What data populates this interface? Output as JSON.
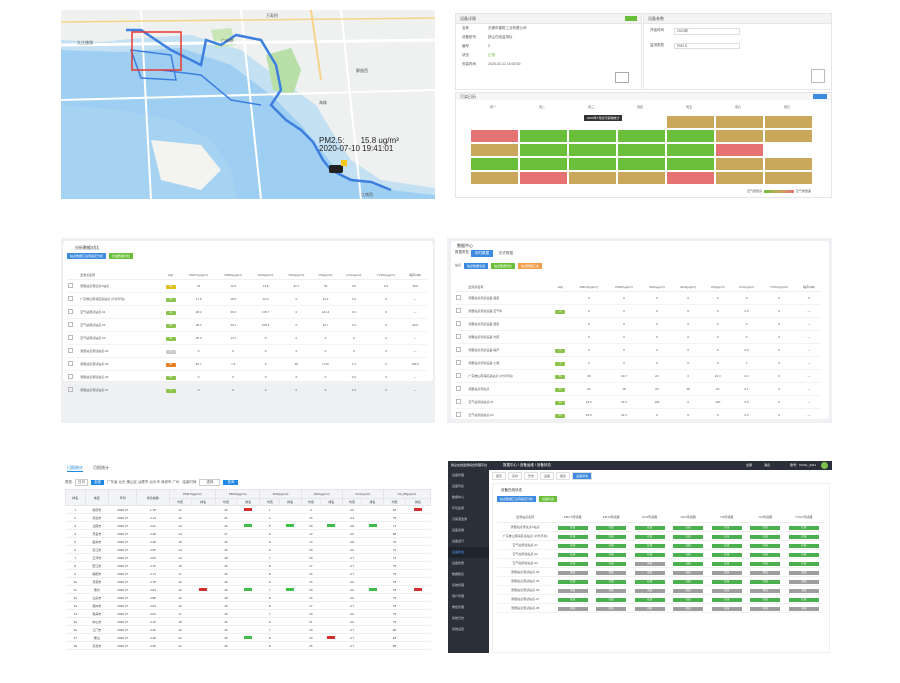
{
  "map": {
    "labels": [
      "万寿桥",
      "九江旅游",
      "广州港",
      "荔湾",
      "解放西",
      "海珠",
      "江南西",
      "中大",
      "南洲",
      "燕岗"
    ],
    "pm25_label": "PM2.5:",
    "pm25_value": "15.8 ug/m³",
    "timestamp": "2020-07-10 19:41:01"
  },
  "panel2": {
    "left_title": "设备详情",
    "right_title": "设备参数",
    "green_btn": "",
    "rows": [
      {
        "k": "名称",
        "v": "无锡市建筑工业有限公司"
      },
      {
        "k": "设备型号",
        "v": "扬尘在线监测仪"
      },
      {
        "k": "编号",
        "v": "3"
      },
      {
        "k": "状态",
        "v": "正常"
      },
      {
        "k": "安装时间",
        "v": "2020-02-21 16:02:00"
      }
    ],
    "params": [
      {
        "k": "开始时间",
        "v": "2020年"
      },
      {
        "k": "监测类型",
        "v": "PM2.5"
      }
    ],
    "heat_title": "污染日历",
    "heat_btn": "",
    "days": [
      "周一",
      "周二",
      "周三",
      "周四",
      "周五",
      "周六",
      "周日"
    ],
    "tooltip": "2020年7月的污染物统计",
    "legend_low": "优",
    "legend_high": "重度",
    "legend_low_label": "空气质量良",
    "legend_high_label": "空气质量差"
  },
  "table3": {
    "title": "分析数据对比",
    "buttons": [
      "站点数据汇总到指定分析",
      "扫描数据对比"
    ],
    "headers": [
      "",
      "监测点名称",
      "AQI",
      "PM2.5(μg/m³)",
      "PM10(μg/m³)",
      "SO2(μg/m³)",
      "NO2(μg/m³)",
      "O3(μg/m³)",
      "CO(mg/m³)",
      "TVOC(μg/m³)",
      "噪声(dB)"
    ],
    "rows": [
      {
        "name": "测量站点测试点A站点",
        "aqi": "45",
        "color": "#e0c020",
        "vals": [
          "32",
          "12.5",
          "14.8",
          "32.7",
          "78",
          "0.5",
          "0.3",
          "78.8"
        ]
      },
      {
        "name": "广东佛山南海区某站点 (户外环境)",
        "aqi": "51",
        "color": "#8bc34a",
        "vals": [
          "17.5",
          "18.5",
          "12.0",
          "0",
          "24.2",
          "0.2",
          "0",
          "—"
        ]
      },
      {
        "name": "空气站测试站点-01",
        "aqi": "42",
        "color": "#8bc34a",
        "vals": [
          "28.4",
          "30.4",
          "115.7",
          "0",
          "124.4",
          "0.3",
          "0",
          "—"
        ]
      },
      {
        "name": "空气站测试站点-02",
        "aqi": "58",
        "color": "#8bc34a",
        "vals": [
          "38.4",
          "20.1",
          "108.3",
          "0",
          "33.7",
          "0.3",
          "0",
          "52.0"
        ]
      },
      {
        "name": "空气站测试站点-03",
        "aqi": "40",
        "color": "#8bc34a",
        "vals": [
          "25.3",
          "14.7",
          "0",
          "0",
          "0",
          "0",
          "0",
          "—"
        ]
      },
      {
        "name": "测量站点测试站点-04",
        "aqi": "0",
        "color": "#cccccc",
        "vals": [
          "0",
          "0",
          "0",
          "0",
          "0",
          "0",
          "0",
          "—"
        ]
      },
      {
        "name": "测量站点测试站点-05",
        "aqi": "95",
        "color": "#e67e22",
        "vals": [
          "81.7",
          "7.9",
          "0",
          "60",
          "1712",
          "0.1",
          "0",
          "196.0"
        ]
      },
      {
        "name": "测量站点测试站点-06",
        "aqi": "50",
        "color": "#8bc34a",
        "vals": [
          "0",
          "0",
          "0",
          "0",
          "0",
          "0.2",
          "0",
          "—"
        ]
      },
      {
        "name": "测量站点测试站点-07",
        "aqi": "0",
        "color": "#8bc34a",
        "vals": [
          "0",
          "0",
          "0",
          "0",
          "0",
          "0.3",
          "0",
          "—"
        ]
      }
    ]
  },
  "table4": {
    "title": "数据中心",
    "tabs": [
      "数据类型",
      "实时数据",
      "历史数据"
    ],
    "filters": [
      "站点",
      "站点数据全选",
      "站点数据对比",
      "站点数据汇总"
    ],
    "headers": [
      "",
      "监测点名称",
      "AQI",
      "PM2.5(μg/m³)",
      "PM10(μg/m³)",
      "SO2(μg/m³)",
      "NO2(μg/m³)",
      "O3(μg/m³)",
      "CO(mg/m³)",
      "TVOC(μg/m³)",
      "噪声(dB)"
    ],
    "rows": [
      {
        "name": "测量站点测试设备-温度",
        "aqi": "",
        "color": "",
        "vals": [
          "0",
          "0",
          "0",
          "0",
          "0",
          "0",
          "0",
          "0"
        ]
      },
      {
        "name": "测量站点测试设备-空气中",
        "aqi": "0",
        "color": "#8bc34a",
        "vals": [
          "0",
          "0",
          "0",
          "0",
          "0",
          "0.5",
          "0",
          "—"
        ]
      },
      {
        "name": "测量站点测试设备-湿度",
        "aqi": "",
        "color": "",
        "vals": [
          "0",
          "0",
          "0",
          "0",
          "0",
          "0",
          "0",
          "—"
        ]
      },
      {
        "name": "测量站点测试设备-光照",
        "aqi": "",
        "color": "",
        "vals": [
          "0",
          "0",
          "0",
          "0",
          "0",
          "0",
          "0",
          "—"
        ]
      },
      {
        "name": "测量站点测试设备-噪声",
        "aqi": "0",
        "color": "#8bc34a",
        "vals": [
          "0",
          "0",
          "0",
          "0",
          "0",
          "0.3",
          "0",
          "—"
        ]
      },
      {
        "name": "测量站点测试设备-土壤",
        "aqi": "0",
        "color": "#8bc34a",
        "vals": [
          "0",
          "0",
          "0",
          "0",
          "0",
          "1",
          "0",
          "—"
        ]
      },
      {
        "name": "广东佛山南海区某站点 (户外环境)",
        "aqi": "51",
        "color": "#8bc34a",
        "vals": [
          "18",
          "30.7",
          "23",
          "0",
          "22.3",
          "0.2",
          "0",
          "—"
        ]
      },
      {
        "name": "测量站点测试点",
        "aqi": "41",
        "color": "#8bc34a",
        "vals": [
          "22",
          "18",
          "25",
          "48",
          "61",
          "0.1",
          "0",
          "—"
        ]
      },
      {
        "name": "空气站测试站点-01",
        "aqi": "42",
        "color": "#8bc34a",
        "vals": [
          "23.5",
          "24.3",
          "102",
          "0",
          "120",
          "0.3",
          "0",
          "—"
        ]
      },
      {
        "name": "空气站测试站点-02",
        "aqi": "43",
        "color": "#8bc34a",
        "vals": [
          "22.5",
          "24.1",
          "0",
          "0",
          "0",
          "0.2",
          "0",
          "—"
        ]
      },
      {
        "name": "空气站测试站点-03",
        "aqi": "55",
        "color": "#e0c020",
        "vals": [
          "37.3",
          "38.7",
          "176.6",
          "0",
          "36.3",
          "0.3",
          "0",
          "40.0"
        ]
      }
    ]
  },
  "table5": {
    "tabs": [
      "日报统计",
      "月报统计"
    ],
    "filter_labels": [
      "类型",
      "日月",
      "全部",
      "广东省 汕头 佛山区 汕尾市 汕头市 深圳市 广州",
      "结束时间",
      "选择",
      "查询"
    ],
    "header_groups": [
      "PM2.5(μg/m³)",
      "PM10(μg/m³)",
      "SO2(μg/m³)",
      "NO2(μg/m³)",
      "CO(mg/m³)",
      "O3_8h(μg/m³)"
    ],
    "headers": [
      "排名",
      "地区",
      "年份",
      "综合指数"
    ],
    "sub_headers": [
      "均值",
      "排名"
    ],
    "rows": [
      {
        "rank": "1",
        "area": "肇庆市",
        "year": "2020.07",
        "idx": "1.78",
        "v": [
          "12",
          "",
          "22",
          "",
          "1",
          "",
          "9",
          "",
          "0.5",
          "",
          "56",
          ""
        ],
        "hl": [
          0,
          2,
          0,
          0,
          0,
          2
        ]
      },
      {
        "rank": "2",
        "area": "清远市",
        "year": "2020.07",
        "idx": "2.14",
        "v": [
          "16",
          "",
          "21",
          "",
          "4",
          "",
          "15",
          "",
          "0.4",
          "",
          "75",
          ""
        ],
        "hl": [
          0,
          0,
          0,
          0,
          0,
          0
        ]
      },
      {
        "rank": "3",
        "area": "汕尾市",
        "year": "2020.07",
        "idx": "2.21",
        "v": [
          "13",
          "",
          "22",
          "",
          "5",
          "",
          "18",
          "",
          "0.8",
          "",
          "71",
          ""
        ],
        "hl": [
          0,
          1,
          1,
          1,
          1,
          0
        ]
      },
      {
        "rank": "4",
        "area": "茂名市",
        "year": "2020.07",
        "idx": "2.48",
        "v": [
          "14",
          "",
          "27",
          "",
          "6",
          "",
          "12",
          "",
          "0.5",
          "",
          "68",
          ""
        ],
        "hl": [
          0,
          0,
          0,
          0,
          0,
          0
        ]
      },
      {
        "rank": "5",
        "area": "韶关市",
        "year": "2020.07",
        "idx": "2.48",
        "v": [
          "15",
          "",
          "25",
          "",
          "9",
          "",
          "14",
          "",
          "0.8",
          "",
          "70",
          ""
        ],
        "hl": [
          0,
          0,
          0,
          0,
          0,
          0
        ]
      },
      {
        "rank": "6",
        "area": "湛江市",
        "year": "2020.07",
        "idx": "2.55",
        "v": [
          "14",
          "",
          "26",
          "",
          "6",
          "",
          "18",
          "",
          "0.6",
          "",
          "72",
          ""
        ],
        "hl": [
          0,
          0,
          0,
          0,
          0,
          0
        ]
      },
      {
        "rank": "7",
        "area": "云浮市",
        "year": "2020.07",
        "idx": "2.63",
        "v": [
          "13",
          "",
          "28",
          "",
          "7",
          "",
          "18",
          "",
          "0.7",
          "",
          "74",
          ""
        ],
        "hl": [
          0,
          0,
          0,
          0,
          0,
          0
        ]
      },
      {
        "rank": "8",
        "area": "阳江市",
        "year": "2020.07",
        "idx": "2.70",
        "v": [
          "15",
          "",
          "25",
          "",
          "8",
          "",
          "17",
          "",
          "0.7",
          "",
          "75",
          ""
        ],
        "hl": [
          0,
          0,
          0,
          0,
          0,
          0
        ]
      },
      {
        "rank": "9",
        "area": "揭阳市",
        "year": "2020.07",
        "idx": "2.74",
        "v": [
          "17",
          "",
          "26",
          "",
          "8",
          "",
          "16",
          "",
          "0.7",
          "",
          "76",
          ""
        ],
        "hl": [
          0,
          0,
          0,
          0,
          0,
          0
        ]
      },
      {
        "rank": "10",
        "area": "河源市",
        "year": "2020.07",
        "idx": "2.78",
        "v": [
          "16",
          "",
          "29",
          "",
          "6",
          "",
          "15",
          "",
          "0.6",
          "",
          "78",
          ""
        ],
        "hl": [
          0,
          0,
          0,
          0,
          0,
          0
        ]
      },
      {
        "rank": "11",
        "area": "惠州",
        "year": "2020.07",
        "idx": "2.84",
        "v": [
          "16",
          "",
          "29",
          "",
          "7",
          "",
          "18",
          "",
          "0.6",
          "",
          "78",
          ""
        ],
        "hl": [
          2,
          1,
          1,
          0,
          1,
          2
        ]
      },
      {
        "rank": "12",
        "area": "汕头市",
        "year": "2020.07",
        "idx": "2.88",
        "v": [
          "16",
          "",
          "28",
          "",
          "8",
          "",
          "16",
          "",
          "0.6",
          "",
          "79",
          ""
        ],
        "hl": [
          0,
          0,
          0,
          0,
          0,
          0
        ]
      },
      {
        "rank": "13",
        "area": "潮州市",
        "year": "2020.07",
        "idx": "2.94",
        "v": [
          "16",
          "",
          "30",
          "",
          "8",
          "",
          "17",
          "",
          "0.7",
          "",
          "78",
          ""
        ],
        "hl": [
          0,
          0,
          0,
          0,
          0,
          0
        ]
      },
      {
        "rank": "14",
        "area": "珠海市",
        "year": "2020.07",
        "idx": "3.02",
        "v": [
          "17",
          "",
          "30",
          "",
          "7",
          "",
          "20",
          "",
          "0.6",
          "",
          "76",
          ""
        ],
        "hl": [
          0,
          0,
          0,
          0,
          0,
          0
        ]
      },
      {
        "rank": "15",
        "area": "中山市",
        "year": "2020.07",
        "idx": "3.15",
        "v": [
          "18",
          "",
          "31",
          "",
          "6",
          "",
          "21",
          "",
          "0.6",
          "",
          "79",
          ""
        ],
        "hl": [
          0,
          0,
          0,
          0,
          0,
          0
        ]
      },
      {
        "rank": "16",
        "area": "江门市",
        "year": "2020.07",
        "idx": "3.20",
        "v": [
          "19",
          "",
          "32",
          "",
          "7",
          "",
          "20",
          "",
          "0.7",
          "",
          "80",
          ""
        ],
        "hl": [
          0,
          0,
          0,
          0,
          0,
          0
        ]
      },
      {
        "rank": "17",
        "area": "佛山",
        "year": "2020.07",
        "idx": "3.28",
        "v": [
          "20",
          "",
          "35",
          "",
          "8",
          "",
          "23",
          "",
          "0.7",
          "",
          "83",
          ""
        ],
        "hl": [
          0,
          1,
          0,
          2,
          0,
          0
        ]
      },
      {
        "rank": "18",
        "area": "东莞市",
        "year": "2020.07",
        "idx": "3.35",
        "v": [
          "21",
          "",
          "36",
          "",
          "8",
          "",
          "25",
          "",
          "0.7",
          "",
          "85",
          ""
        ],
        "hl": [
          0,
          0,
          0,
          0,
          0,
          0
        ]
      }
    ]
  },
  "panel6": {
    "app_title": "扬尘在线监测综合管理平台",
    "breadcrumb": "数据中心 / 设备运维 / 设备状态",
    "topbar_right": [
      "全屏",
      "消息",
      "账号：COOL_3241"
    ],
    "sidebar": [
      "设备管理",
      "设备列表",
      "数据中心",
      "环境监测",
      "污染源监测",
      "设备运维",
      "设备运行",
      "设备状态",
      "设备告警",
      "数据报表",
      "系统管理",
      "用户管理",
      "角色管理",
      "系统日志",
      "系统设置"
    ],
    "tabs": [
      "首页",
      "实时",
      "历史",
      "设备",
      "报表",
      "设备状态"
    ],
    "title": "设备在线状态",
    "buttons": [
      "站点数据汇总到指定分析",
      "设备状态"
    ],
    "headers": [
      "监测站点名称",
      "PM2.5传感器",
      "PM10传感器",
      "SO2传感器",
      "NO2传感器",
      "O3传感器",
      "CO传感器",
      "TVOC传感器"
    ],
    "status_on": "在线",
    "status_off": "离线",
    "rows": [
      {
        "name": "测量站点测试点A站点",
        "s": [
          1,
          1,
          1,
          1,
          1,
          1,
          1
        ]
      },
      {
        "name": "广东佛山南海区某站点 (户外环境)",
        "s": [
          1,
          1,
          1,
          1,
          1,
          1,
          1
        ]
      },
      {
        "name": "空气站测试站点-01",
        "s": [
          1,
          1,
          1,
          1,
          1,
          1,
          1
        ]
      },
      {
        "name": "空气站测试站点-02",
        "s": [
          1,
          1,
          1,
          1,
          1,
          1,
          1
        ]
      },
      {
        "name": "空气站测试站点-03",
        "s": [
          1,
          1,
          0,
          1,
          1,
          1,
          1
        ]
      },
      {
        "name": "测量站点测试站点-04",
        "s": [
          0,
          0,
          0,
          0,
          0,
          0,
          0
        ]
      },
      {
        "name": "测量站点测试站点-05",
        "s": [
          1,
          1,
          1,
          1,
          1,
          1,
          0
        ]
      },
      {
        "name": "测量站点测试站点-06",
        "s": [
          0,
          0,
          0,
          0,
          0,
          0,
          0
        ]
      },
      {
        "name": "测量站点测试站点-07",
        "s": [
          1,
          1,
          1,
          1,
          1,
          1,
          1
        ]
      },
      {
        "name": "测量站点测试站点-08",
        "s": [
          0,
          0,
          0,
          0,
          0,
          0,
          0
        ]
      }
    ]
  },
  "colors": {
    "accent": "#1e88e5",
    "green": "#6abf3a",
    "red": "#e57373",
    "grey": "#9e9e9e",
    "dark": "#2b2f3a"
  }
}
